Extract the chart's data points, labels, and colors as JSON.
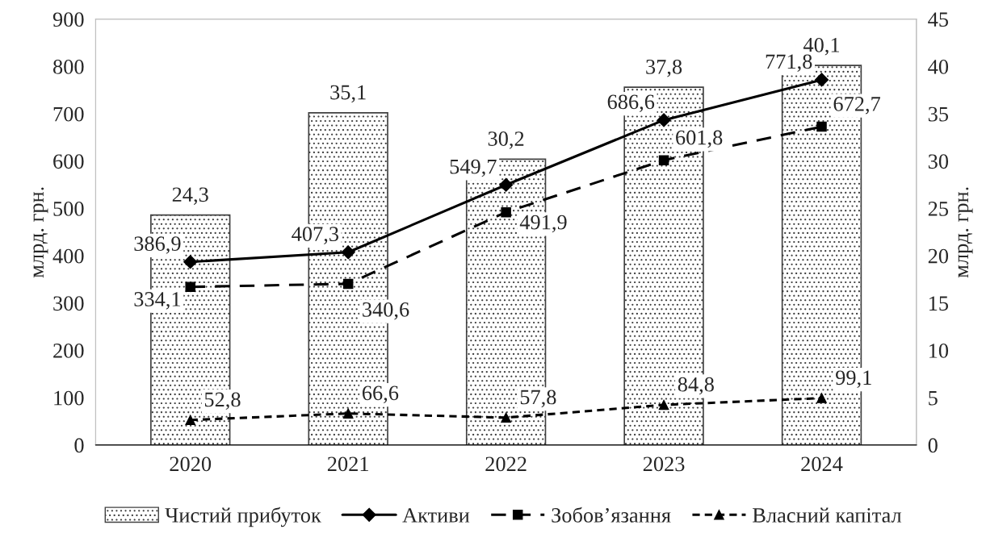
{
  "chart_data": {
    "type": "bar",
    "categories": [
      "2020",
      "2021",
      "2022",
      "2023",
      "2024"
    ],
    "ylabel": "млрд. грн.",
    "y2label": "млрд. грн.",
    "ylim": [
      0,
      900
    ],
    "yticks": [
      0,
      100,
      200,
      300,
      400,
      500,
      600,
      700,
      800,
      900
    ],
    "y2lim": [
      0,
      45
    ],
    "y2ticks": [
      0,
      5,
      10,
      15,
      20,
      25,
      30,
      35,
      40,
      45
    ],
    "grid": false,
    "legend": "bottom",
    "series": [
      {
        "name": "Чистий прибуток",
        "axis": "y2",
        "color": "#404040",
        "values": [
          24.3,
          35.1,
          30.2,
          37.8,
          40.1
        ],
        "value_labels": [
          "24,3",
          "35,1",
          "30,2",
          "37,8",
          "40,1"
        ]
      },
      {
        "name": "Активи",
        "type": "line",
        "axis": "y",
        "color": "#000000",
        "marker": "diamond",
        "line_style": "solid",
        "values": [
          386.9,
          407.3,
          549.7,
          686.6,
          771.8
        ],
        "value_labels": [
          "386,9",
          "407,3",
          "549,7",
          "686,6",
          "771,8"
        ]
      },
      {
        "name": "Зобов’язання",
        "type": "line",
        "axis": "y",
        "color": "#000000",
        "marker": "square",
        "line_style": "dashed",
        "values": [
          334.1,
          340.6,
          491.9,
          601.8,
          672.7
        ],
        "value_labels": [
          "334,1",
          "340,6",
          "491,9",
          "601,8",
          "672,7"
        ]
      },
      {
        "name": "Власний капітал",
        "type": "line",
        "axis": "y",
        "color": "#000000",
        "marker": "triangle",
        "line_style": "dotted",
        "values": [
          52.8,
          66.6,
          57.8,
          84.8,
          99.1
        ],
        "value_labels": [
          "52,8",
          "66,6",
          "57,8",
          "84,8",
          "99,1"
        ]
      }
    ]
  }
}
